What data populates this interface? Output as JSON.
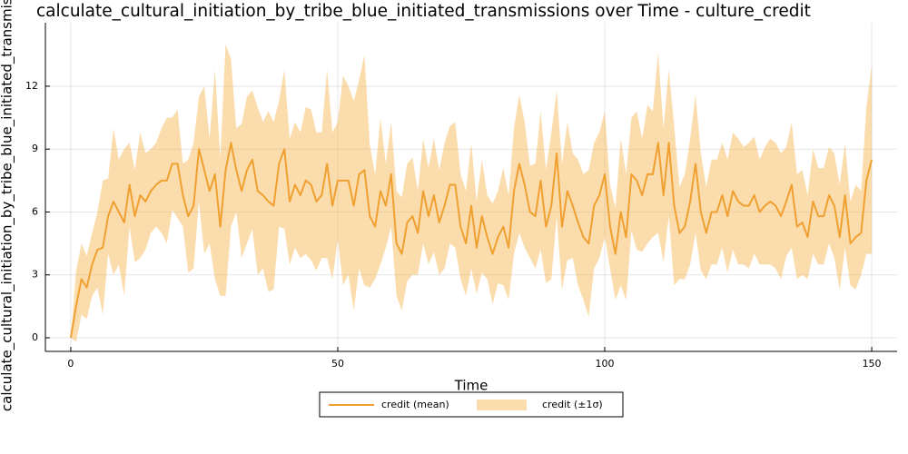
{
  "chart_data": {
    "type": "line",
    "title": "calculate_cultural_initiation_by_tribe_blue_initiated_transmissions over Time - culture_credit",
    "xlabel": "Time",
    "ylabel": "calculate_cultural_initiation_by_tribe_blue_initiated_transmissions",
    "x": [
      0,
      1,
      2,
      3,
      4,
      5,
      6,
      7,
      8,
      9,
      10,
      11,
      12,
      13,
      14,
      15,
      16,
      17,
      18,
      19,
      20,
      21,
      22,
      23,
      24,
      25,
      26,
      27,
      28,
      29,
      30,
      31,
      32,
      33,
      34,
      35,
      36,
      37,
      38,
      39,
      40,
      41,
      42,
      43,
      44,
      45,
      46,
      47,
      48,
      49,
      50,
      51,
      52,
      53,
      54,
      55,
      56,
      57,
      58,
      59,
      60,
      61,
      62,
      63,
      64,
      65,
      66,
      67,
      68,
      69,
      70,
      71,
      72,
      73,
      74,
      75,
      76,
      77,
      78,
      79,
      80,
      81,
      82,
      83,
      84,
      85,
      86,
      87,
      88,
      89,
      90,
      91,
      92,
      93,
      94,
      95,
      96,
      97,
      98,
      99,
      100,
      101,
      102,
      103,
      104,
      105,
      106,
      107,
      108,
      109,
      110,
      111,
      112,
      113,
      114,
      115,
      116,
      117,
      118,
      119,
      120,
      121,
      122,
      123,
      124,
      125,
      126,
      127,
      128,
      129,
      130,
      131,
      132,
      133,
      134,
      135,
      136,
      137,
      138,
      139,
      140,
      141,
      142,
      143,
      144,
      145,
      146,
      147,
      148,
      149,
      150
    ],
    "series": [
      {
        "name": "credit (mean)",
        "color": "#f0a030",
        "values": [
          0,
          1.5,
          2.8,
          2.4,
          3.5,
          4.2,
          4.3,
          5.8,
          6.5,
          6,
          5.5,
          7.3,
          5.8,
          6.8,
          6.5,
          7,
          7.3,
          7.5,
          7.5,
          8.3,
          8.3,
          6.8,
          5.8,
          6.3,
          9,
          8,
          7,
          7.8,
          5.3,
          8,
          9.3,
          8,
          7,
          8,
          8.5,
          7,
          6.8,
          6.5,
          6.3,
          8.3,
          9,
          6.5,
          7.3,
          6.8,
          7.5,
          7.3,
          6.5,
          6.8,
          8.3,
          6.3,
          7.5,
          7.5,
          7.5,
          6.3,
          7.8,
          8,
          5.8,
          5.3,
          7,
          6.3,
          7.8,
          4.5,
          4,
          5.5,
          5.8,
          5,
          7,
          5.8,
          6.8,
          5.5,
          6.3,
          7.3,
          7.3,
          5.3,
          4.5,
          6.3,
          4.3,
          5.8,
          4.8,
          4,
          4.8,
          5.3,
          4.3,
          7,
          8.3,
          7.3,
          6,
          5.8,
          7.5,
          5.3,
          6.3,
          8.8,
          5.3,
          7,
          6.3,
          5.5,
          4.8,
          4.5,
          6.3,
          6.8,
          7.8,
          5.3,
          4,
          6,
          4.8,
          7.8,
          7.5,
          6.8,
          7.8,
          7.8,
          9.3,
          6.8,
          9.3,
          6.3,
          5,
          5.3,
          6.5,
          8.3,
          6,
          5,
          6,
          6,
          6.8,
          5.8,
          7,
          6.5,
          6.3,
          6.3,
          6.8,
          6,
          6.3,
          6.5,
          6.3,
          5.8,
          6.5,
          7.3,
          5.3,
          5.5,
          4.8,
          6.5,
          5.8,
          5.8,
          6.8,
          6.3,
          4.8,
          6.8,
          4.5,
          4.8,
          5,
          7.5,
          8.5
        ]
      }
    ],
    "band": {
      "name": "credit (±1σ)",
      "color": "#f7b44a",
      "lower": [
        0,
        -0.2,
        1.1,
        0.9,
        2,
        2.4,
        1.1,
        4,
        3,
        3.5,
        2,
        5.3,
        3.6,
        3.8,
        4.2,
        5,
        5.3,
        5,
        4.5,
        6.1,
        5.7,
        5.3,
        3.1,
        3.3,
        6.5,
        4,
        4.5,
        2.8,
        2,
        2,
        5.3,
        6,
        3.8,
        4.5,
        5.2,
        3,
        3.3,
        2.2,
        2.3,
        5.3,
        5.2,
        3.5,
        4.3,
        3.8,
        4,
        3.7,
        3.2,
        3.8,
        3.8,
        2.8,
        4.7,
        2.5,
        3,
        1.3,
        3.3,
        2.5,
        2.4,
        2.8,
        3.5,
        4.3,
        5.3,
        2,
        1.3,
        2.7,
        3,
        3,
        4.5,
        3.5,
        4.1,
        3,
        3.3,
        4.5,
        4.3,
        2.8,
        2,
        3.3,
        2.1,
        3.1,
        2.8,
        1.6,
        2.6,
        2.5,
        1.8,
        4,
        5,
        4.3,
        3.8,
        3.3,
        4.2,
        2.6,
        2.8,
        5.8,
        2.3,
        3.7,
        3.8,
        2.5,
        1.8,
        1,
        3.3,
        3.8,
        4.8,
        3.3,
        1.8,
        2.5,
        1.8,
        5.1,
        4.2,
        4.1,
        4.5,
        4.8,
        5,
        3.6,
        5.8,
        2.5,
        2.8,
        2.8,
        3.5,
        5,
        3.2,
        2.8,
        3.5,
        3.5,
        4.3,
        3.1,
        4.2,
        3.5,
        3.5,
        3.3,
        4,
        3.5,
        3.5,
        3.5,
        3.3,
        2.8,
        3.9,
        4.3,
        2.8,
        3,
        2.8,
        4,
        3.5,
        3.5,
        4.5,
        3.8,
        2.3,
        4.3,
        2.5,
        2.3,
        3,
        4,
        4
      ],
      "upper": [
        0,
        3.2,
        4.5,
        3.9,
        5,
        6,
        7.5,
        7.6,
        10,
        8.5,
        9,
        9.3,
        8,
        9.8,
        8.8,
        9,
        9.3,
        10,
        10.5,
        10.5,
        10.9,
        8.3,
        8.5,
        9.3,
        11.5,
        12,
        9.5,
        12.8,
        8.6,
        14,
        13.3,
        10,
        10.2,
        11.5,
        11.8,
        11,
        10.3,
        10.8,
        10.3,
        11.3,
        12.8,
        9.5,
        10.3,
        9.8,
        11,
        10.9,
        9.8,
        9.8,
        12.8,
        9.8,
        10.3,
        12.5,
        12,
        11.3,
        12.3,
        13.5,
        9.2,
        7.8,
        10.5,
        8.3,
        10.3,
        7,
        6.7,
        8.3,
        8.6,
        7,
        9.5,
        8.1,
        9.5,
        8,
        9.3,
        10.1,
        10.3,
        7.8,
        7,
        9.3,
        6.5,
        8.5,
        6.8,
        6.4,
        7,
        8.1,
        6.8,
        10,
        11.6,
        10.3,
        8.2,
        8.3,
        10.8,
        8,
        9.8,
        11.8,
        8.3,
        10.3,
        8.8,
        8.5,
        7.8,
        8,
        9.3,
        9.8,
        10.8,
        7.3,
        6.2,
        9.5,
        7.8,
        10.5,
        10.8,
        9.5,
        11.1,
        10.8,
        13.6,
        10,
        12.8,
        10.1,
        7.2,
        7.8,
        9.5,
        11.6,
        8.8,
        7.2,
        8.5,
        8.5,
        9.3,
        8.5,
        9.8,
        9.5,
        9.1,
        9.3,
        9.6,
        8.5,
        9.1,
        9.5,
        9.3,
        8.8,
        9.1,
        10.3,
        7.8,
        8,
        6.8,
        9,
        8.1,
        8.1,
        9.1,
        8.8,
        7.3,
        9.3,
        6.5,
        7.3,
        7,
        11,
        13
      ]
    },
    "xlim": [
      -4.75,
      154.75
    ],
    "ylim": [
      -0.65,
      15.03
    ],
    "xticks": [
      0,
      50,
      100,
      150
    ],
    "yticks": [
      0,
      3,
      6,
      9,
      12
    ],
    "grid": true,
    "legend": "bottom"
  }
}
